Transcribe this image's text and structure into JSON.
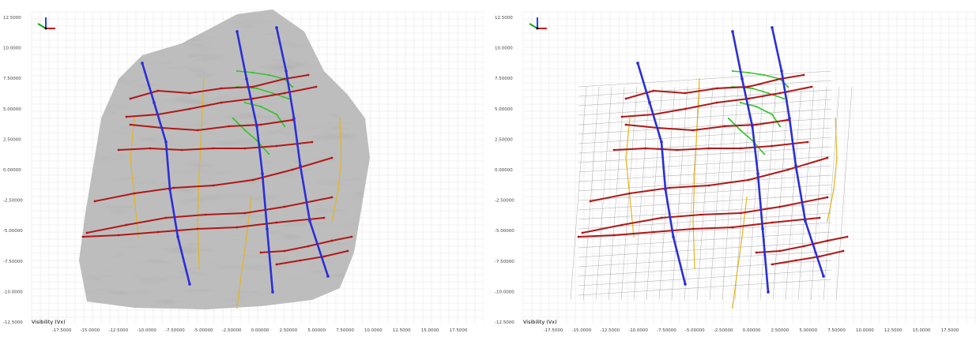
{
  "views": [
    {
      "id": "left",
      "y_ticks": [
        "12.5000",
        "10.0000",
        "7.50000",
        "5.00000",
        "2.50000",
        "0.00000",
        "-2.50000",
        "-5.00000",
        "-7.50000",
        "-10.0000",
        "-12.5000"
      ],
      "x_ticks": [
        "-17.5000",
        "-15.0000",
        "-12.5000",
        "-10.0000",
        "-7.50000",
        "-5.00000",
        "-2.50000",
        "0.00000",
        "2.50000",
        "5.00000",
        "7.50000",
        "10.0000",
        "12.5000",
        "15.0000",
        "17.5000"
      ],
      "axis_label": "Visibility (Vx)",
      "has_image": true
    },
    {
      "id": "right",
      "y_ticks": [
        "12.5000",
        "10.0000",
        "7.50000",
        "5.00000",
        "2.50000",
        "0.00000",
        "-2.50000",
        "-5.00000",
        "-7.50000",
        "-10.0000",
        "-12.5000"
      ],
      "x_ticks": [
        "-17.5000",
        "-15.0000",
        "-12.5000",
        "-10.0000",
        "-7.50000",
        "-5.00000",
        "-2.50000",
        "0.00000",
        "2.50000",
        "5.00000",
        "7.50000",
        "10.0000",
        "12.5000",
        "15.0000",
        "17.5000"
      ],
      "axis_label": "Visibility (Vx)",
      "has_image": false
    }
  ],
  "icons": {
    "axis_triad": "axis-triad-icon"
  },
  "colors": {
    "fault_blue": "#2b2fd6",
    "horizon_red": "#b01818",
    "horizon_green": "#35c22e",
    "horizon_yellow": "#e4b51d",
    "grid": "#e2e2e2",
    "rock_dark": "#555555",
    "rock_light": "#bdbdbd"
  }
}
